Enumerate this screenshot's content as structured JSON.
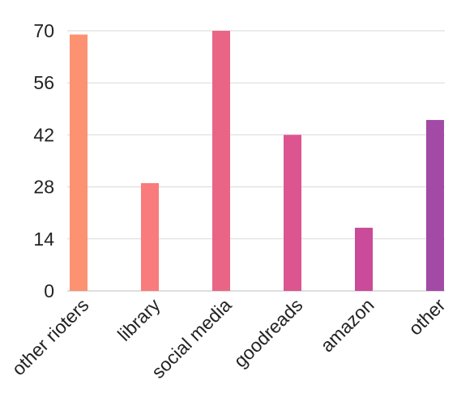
{
  "chart_data": {
    "type": "bar",
    "title": "",
    "xlabel": "",
    "ylabel": "",
    "categories": [
      "other rioters",
      "library",
      "social media",
      "goodreads",
      "amazon",
      "other"
    ],
    "values": [
      69,
      29,
      70,
      42,
      17,
      46
    ],
    "ylim": [
      0,
      70
    ],
    "yticks": [
      0,
      14,
      28,
      42,
      56,
      70
    ],
    "grid": true,
    "legend": "none",
    "colors": [
      "#fc9272",
      "#f97b7b",
      "#ea6585",
      "#dc5590",
      "#c94b99",
      "#a349a6"
    ]
  }
}
